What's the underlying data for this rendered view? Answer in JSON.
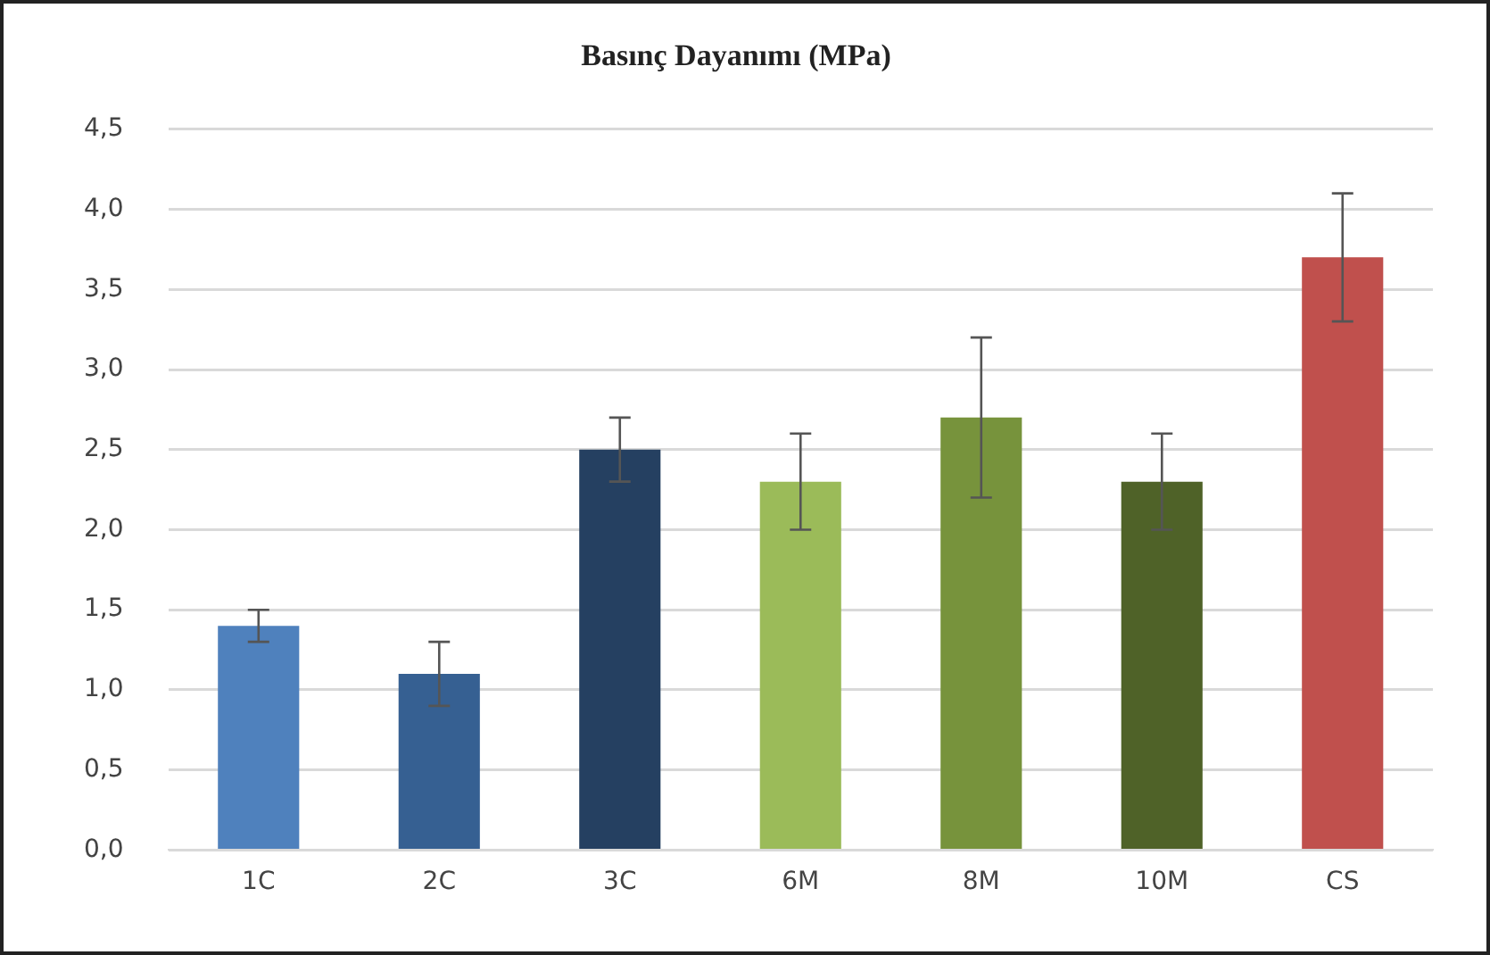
{
  "chart_data": {
    "type": "bar",
    "title": "Basınç Dayanımı (MPa)",
    "categories": [
      "1C",
      "2C",
      "3C",
      "6M",
      "8M",
      "10M",
      "CS"
    ],
    "values": [
      1.4,
      1.1,
      2.5,
      2.3,
      2.7,
      2.3,
      3.7
    ],
    "colors": [
      "#4f81bd",
      "#366092",
      "#254061",
      "#9bbb59",
      "#77933c",
      "#4f6228",
      "#c0504d"
    ],
    "errors": [
      0.1,
      0.2,
      0.2,
      0.3,
      0.5,
      0.3,
      0.4
    ],
    "ylim": [
      0,
      4.5
    ],
    "yticks": [
      {
        "value": 0,
        "label": "0,0"
      },
      {
        "value": 0.5,
        "label": "0,5"
      },
      {
        "value": 1,
        "label": "1,0"
      },
      {
        "value": 1.5,
        "label": "1,5"
      },
      {
        "value": 2,
        "label": "2,0"
      },
      {
        "value": 2.5,
        "label": "2,5"
      },
      {
        "value": 3,
        "label": "3,0"
      },
      {
        "value": 3.5,
        "label": "3,5"
      },
      {
        "value": 4,
        "label": "4,0"
      },
      {
        "value": 4.5,
        "label": "4,5"
      }
    ],
    "grid": "y"
  }
}
